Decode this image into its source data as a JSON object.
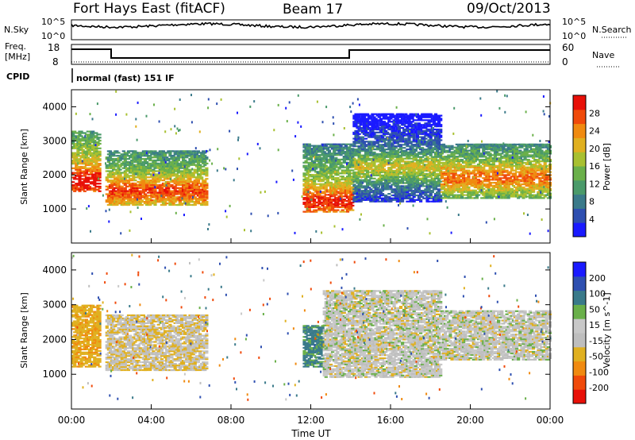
{
  "header": {
    "station_title": "Fort Hays East (fitACF)",
    "beam": "Beam 17",
    "date": "09/Oct/2013"
  },
  "noise_panel": {
    "left_label": "N.Sky",
    "right_label": "N.Search",
    "left_ticks": [
      "10^5",
      "10^0"
    ],
    "right_ticks": [
      "10^5",
      "10^0"
    ]
  },
  "freq_panel": {
    "left_label_line1": "Freq.",
    "left_label_line2": "[MHz]",
    "right_label": "Nave",
    "left_ticks": [
      "18",
      "8"
    ],
    "right_ticks": [
      "60",
      "0"
    ]
  },
  "cpid": {
    "label": "CPID",
    "mode_text": "normal (fast) 151 IF"
  },
  "colors": {
    "power_scale": [
      "#1a1aff",
      "#2e4fb0",
      "#3a7a8a",
      "#4a9a6a",
      "#6ab04a",
      "#a8c030",
      "#e0b020",
      "#f08a10",
      "#f04a0a",
      "#e81008"
    ],
    "velocity_scale": [
      "#e81008",
      "#f04a0a",
      "#f08a10",
      "#e0b020",
      "#bebebe",
      "#c8c8c8",
      "#6ab04a",
      "#3a7a8a",
      "#2e4fb0",
      "#1a1aff"
    ]
  },
  "chart_data": [
    {
      "type": "heatmap",
      "panel": "power",
      "ylabel": "Slant Range [km]",
      "y_ticks": [
        "1000",
        "2000",
        "3000",
        "4000"
      ],
      "ylim": [
        0,
        4500
      ],
      "xlim_hours": [
        0,
        24
      ],
      "colorbar_label": "Power [dB]",
      "colorbar_ticks": [
        "4",
        "8",
        "12",
        "16",
        "20",
        "24",
        "28"
      ],
      "colorbar_range": [
        0,
        32
      ],
      "bands": [
        {
          "t_start": 0.0,
          "t_end": 1.4,
          "range_low": 1500,
          "range_high": 3300,
          "peak": 1800,
          "power": 24
        },
        {
          "t_start": 1.7,
          "t_end": 6.8,
          "range_low": 1100,
          "range_high": 2700,
          "peak": 1500,
          "power": 20
        },
        {
          "t_start": 11.6,
          "t_end": 14.1,
          "range_low": 900,
          "range_high": 2900,
          "peak": 1200,
          "power": 22
        },
        {
          "t_start": 14.1,
          "t_end": 18.5,
          "range_low": 1200,
          "range_high": 3800,
          "peak": 2200,
          "power": 12
        },
        {
          "t_start": 18.5,
          "t_end": 24.0,
          "range_low": 1300,
          "range_high": 2900,
          "peak": 1900,
          "power": 18
        }
      ]
    },
    {
      "type": "heatmap",
      "panel": "velocity",
      "ylabel": "Slant Range [km]",
      "y_ticks": [
        "1000",
        "2000",
        "3000",
        "4000"
      ],
      "ylim": [
        0,
        4500
      ],
      "xlim_hours": [
        0,
        24
      ],
      "colorbar_label": "Velocity [m s^-1]",
      "colorbar_ticks": [
        "-200",
        "-100",
        "-50",
        "-15",
        "15",
        "50",
        "100",
        "200"
      ],
      "colorbar_range": [
        -250,
        250
      ],
      "bands": [
        {
          "t_start": 0.0,
          "t_end": 1.4,
          "range_low": 1200,
          "range_high": 3000,
          "velocity": -40
        },
        {
          "t_start": 1.7,
          "t_end": 6.8,
          "range_low": 1100,
          "range_high": 2700,
          "velocity": -10
        },
        {
          "t_start": 11.6,
          "t_end": 12.6,
          "range_low": 1200,
          "range_high": 2400,
          "velocity": 60
        },
        {
          "t_start": 12.6,
          "t_end": 18.5,
          "range_low": 900,
          "range_high": 3400,
          "velocity": 0
        },
        {
          "t_start": 18.5,
          "t_end": 24.0,
          "range_low": 1400,
          "range_high": 2800,
          "velocity": 0
        }
      ]
    }
  ],
  "x_axis": {
    "ticks": [
      "00:00",
      "04:00",
      "08:00",
      "12:00",
      "16:00",
      "20:00",
      "00:00"
    ],
    "label": "Time UT"
  }
}
